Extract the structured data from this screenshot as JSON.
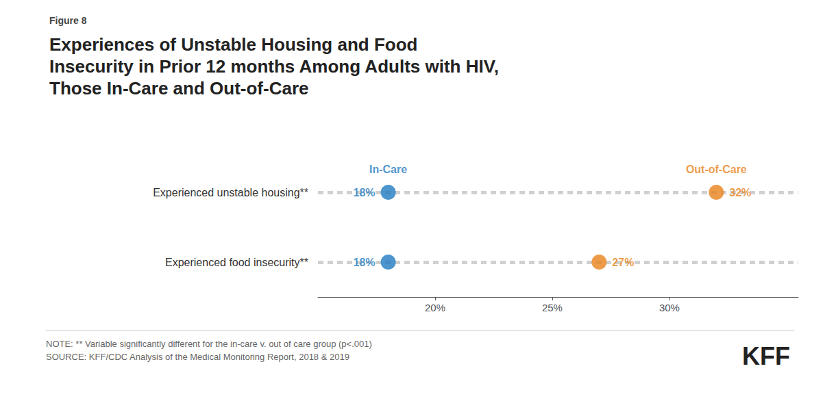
{
  "chart_data": {
    "type": "dumbbell",
    "subtitle": "Figure 8",
    "title": "Experiences of Unstable Housing and Food\nInsecurity in Prior 12 months Among Adults with HIV,\nThose In-Care and Out-of-Care",
    "categories": [
      "Experienced unstable housing**",
      "Experienced food insecurity**"
    ],
    "series": [
      {
        "name": "In-Care",
        "color": "#1f7bc0",
        "values": [
          18,
          18
        ],
        "value_labels": [
          "18%",
          "18%"
        ]
      },
      {
        "name": "Out-of-Care",
        "color": "#e8821a",
        "values": [
          32,
          27
        ],
        "value_labels": [
          "32%",
          "27%"
        ]
      }
    ],
    "xlim": [
      15,
      35.5
    ],
    "xticks": [
      {
        "value": 20,
        "label": "20%"
      },
      {
        "value": 25,
        "label": "25%"
      },
      {
        "value": 30,
        "label": "30%"
      }
    ],
    "data_labels": true,
    "grid": false,
    "notes": [
      "NOTE: ** Variable significantly different for the in-care v. out of care group (p<.001)",
      "SOURCE: KFF/CDC Analysis of the Medical Monitoring Report, 2018 & 2019"
    ],
    "annotations": [
      "KFF"
    ]
  }
}
